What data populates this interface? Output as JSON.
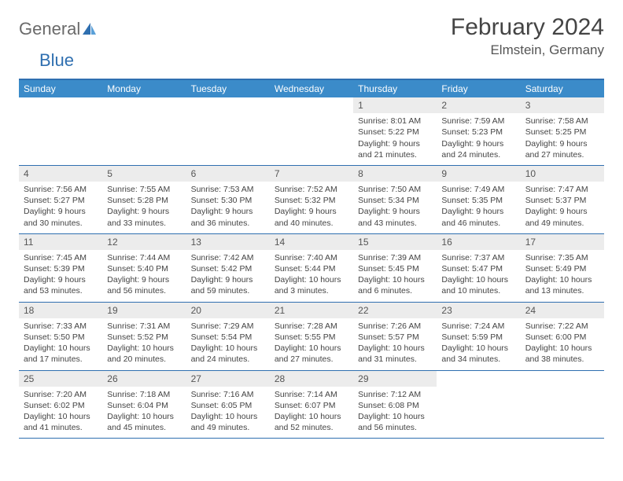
{
  "brand": {
    "part1": "General",
    "part2": "Blue"
  },
  "title": "February 2024",
  "location": "Elmstein, Germany",
  "colors": {
    "header_bg": "#3b8bc9",
    "border": "#2f6fb0",
    "daynum_bg": "#ececec",
    "text": "#444444"
  },
  "weekdays": [
    "Sunday",
    "Monday",
    "Tuesday",
    "Wednesday",
    "Thursday",
    "Friday",
    "Saturday"
  ],
  "weeks": [
    [
      {
        "n": "",
        "sr": "",
        "ss": "",
        "dl": ""
      },
      {
        "n": "",
        "sr": "",
        "ss": "",
        "dl": ""
      },
      {
        "n": "",
        "sr": "",
        "ss": "",
        "dl": ""
      },
      {
        "n": "",
        "sr": "",
        "ss": "",
        "dl": ""
      },
      {
        "n": "1",
        "sr": "Sunrise: 8:01 AM",
        "ss": "Sunset: 5:22 PM",
        "dl": "Daylight: 9 hours and 21 minutes."
      },
      {
        "n": "2",
        "sr": "Sunrise: 7:59 AM",
        "ss": "Sunset: 5:23 PM",
        "dl": "Daylight: 9 hours and 24 minutes."
      },
      {
        "n": "3",
        "sr": "Sunrise: 7:58 AM",
        "ss": "Sunset: 5:25 PM",
        "dl": "Daylight: 9 hours and 27 minutes."
      }
    ],
    [
      {
        "n": "4",
        "sr": "Sunrise: 7:56 AM",
        "ss": "Sunset: 5:27 PM",
        "dl": "Daylight: 9 hours and 30 minutes."
      },
      {
        "n": "5",
        "sr": "Sunrise: 7:55 AM",
        "ss": "Sunset: 5:28 PM",
        "dl": "Daylight: 9 hours and 33 minutes."
      },
      {
        "n": "6",
        "sr": "Sunrise: 7:53 AM",
        "ss": "Sunset: 5:30 PM",
        "dl": "Daylight: 9 hours and 36 minutes."
      },
      {
        "n": "7",
        "sr": "Sunrise: 7:52 AM",
        "ss": "Sunset: 5:32 PM",
        "dl": "Daylight: 9 hours and 40 minutes."
      },
      {
        "n": "8",
        "sr": "Sunrise: 7:50 AM",
        "ss": "Sunset: 5:34 PM",
        "dl": "Daylight: 9 hours and 43 minutes."
      },
      {
        "n": "9",
        "sr": "Sunrise: 7:49 AM",
        "ss": "Sunset: 5:35 PM",
        "dl": "Daylight: 9 hours and 46 minutes."
      },
      {
        "n": "10",
        "sr": "Sunrise: 7:47 AM",
        "ss": "Sunset: 5:37 PM",
        "dl": "Daylight: 9 hours and 49 minutes."
      }
    ],
    [
      {
        "n": "11",
        "sr": "Sunrise: 7:45 AM",
        "ss": "Sunset: 5:39 PM",
        "dl": "Daylight: 9 hours and 53 minutes."
      },
      {
        "n": "12",
        "sr": "Sunrise: 7:44 AM",
        "ss": "Sunset: 5:40 PM",
        "dl": "Daylight: 9 hours and 56 minutes."
      },
      {
        "n": "13",
        "sr": "Sunrise: 7:42 AM",
        "ss": "Sunset: 5:42 PM",
        "dl": "Daylight: 9 hours and 59 minutes."
      },
      {
        "n": "14",
        "sr": "Sunrise: 7:40 AM",
        "ss": "Sunset: 5:44 PM",
        "dl": "Daylight: 10 hours and 3 minutes."
      },
      {
        "n": "15",
        "sr": "Sunrise: 7:39 AM",
        "ss": "Sunset: 5:45 PM",
        "dl": "Daylight: 10 hours and 6 minutes."
      },
      {
        "n": "16",
        "sr": "Sunrise: 7:37 AM",
        "ss": "Sunset: 5:47 PM",
        "dl": "Daylight: 10 hours and 10 minutes."
      },
      {
        "n": "17",
        "sr": "Sunrise: 7:35 AM",
        "ss": "Sunset: 5:49 PM",
        "dl": "Daylight: 10 hours and 13 minutes."
      }
    ],
    [
      {
        "n": "18",
        "sr": "Sunrise: 7:33 AM",
        "ss": "Sunset: 5:50 PM",
        "dl": "Daylight: 10 hours and 17 minutes."
      },
      {
        "n": "19",
        "sr": "Sunrise: 7:31 AM",
        "ss": "Sunset: 5:52 PM",
        "dl": "Daylight: 10 hours and 20 minutes."
      },
      {
        "n": "20",
        "sr": "Sunrise: 7:29 AM",
        "ss": "Sunset: 5:54 PM",
        "dl": "Daylight: 10 hours and 24 minutes."
      },
      {
        "n": "21",
        "sr": "Sunrise: 7:28 AM",
        "ss": "Sunset: 5:55 PM",
        "dl": "Daylight: 10 hours and 27 minutes."
      },
      {
        "n": "22",
        "sr": "Sunrise: 7:26 AM",
        "ss": "Sunset: 5:57 PM",
        "dl": "Daylight: 10 hours and 31 minutes."
      },
      {
        "n": "23",
        "sr": "Sunrise: 7:24 AM",
        "ss": "Sunset: 5:59 PM",
        "dl": "Daylight: 10 hours and 34 minutes."
      },
      {
        "n": "24",
        "sr": "Sunrise: 7:22 AM",
        "ss": "Sunset: 6:00 PM",
        "dl": "Daylight: 10 hours and 38 minutes."
      }
    ],
    [
      {
        "n": "25",
        "sr": "Sunrise: 7:20 AM",
        "ss": "Sunset: 6:02 PM",
        "dl": "Daylight: 10 hours and 41 minutes."
      },
      {
        "n": "26",
        "sr": "Sunrise: 7:18 AM",
        "ss": "Sunset: 6:04 PM",
        "dl": "Daylight: 10 hours and 45 minutes."
      },
      {
        "n": "27",
        "sr": "Sunrise: 7:16 AM",
        "ss": "Sunset: 6:05 PM",
        "dl": "Daylight: 10 hours and 49 minutes."
      },
      {
        "n": "28",
        "sr": "Sunrise: 7:14 AM",
        "ss": "Sunset: 6:07 PM",
        "dl": "Daylight: 10 hours and 52 minutes."
      },
      {
        "n": "29",
        "sr": "Sunrise: 7:12 AM",
        "ss": "Sunset: 6:08 PM",
        "dl": "Daylight: 10 hours and 56 minutes."
      },
      {
        "n": "",
        "sr": "",
        "ss": "",
        "dl": ""
      },
      {
        "n": "",
        "sr": "",
        "ss": "",
        "dl": ""
      }
    ]
  ]
}
